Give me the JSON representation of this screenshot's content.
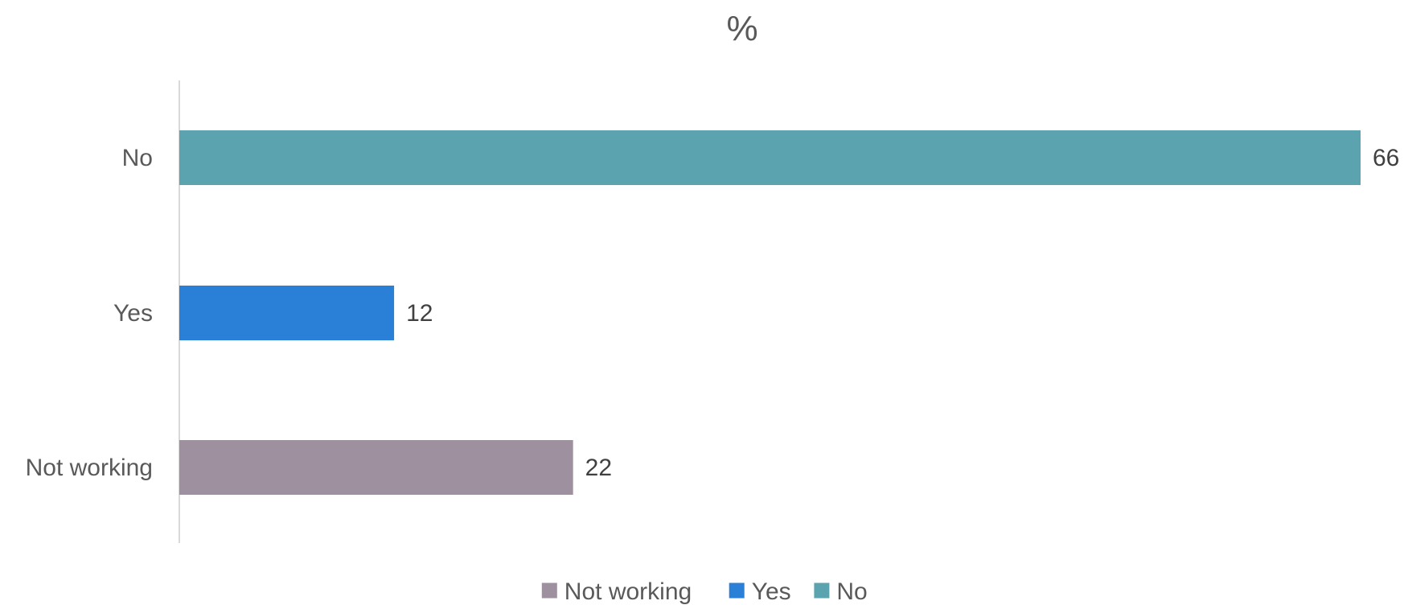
{
  "chart_data": {
    "type": "bar",
    "orientation": "horizontal",
    "title": "%",
    "xlabel": "",
    "ylabel": "",
    "categories": [
      "No",
      "Yes",
      "Not working"
    ],
    "values": [
      66,
      12,
      22
    ],
    "colors": [
      "#5BA3AF",
      "#2A7FD6",
      "#9E909F"
    ],
    "xlim": [
      0,
      66
    ],
    "grid": false,
    "legend": {
      "position": "bottom",
      "entries": [
        {
          "label": "Not working",
          "color": "#9E909F"
        },
        {
          "label": "Yes",
          "color": "#2A7FD6"
        },
        {
          "label": "No",
          "color": "#5BA3AF"
        }
      ]
    }
  }
}
